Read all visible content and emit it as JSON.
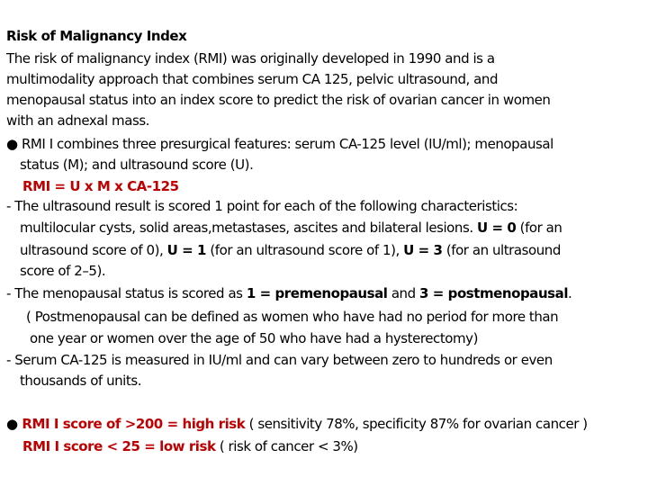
{
  "title": "Risk of Malignancy Index",
  "intro": [
    "The risk of malignancy index (RMI) was originally developed in 1990 and is a",
    "multimodality approach that combines serum CA 125, pelvic ultrasound, and",
    "menopausal status into an index score to predict the risk of ovarian cancer in women",
    "with an adnexal mass."
  ],
  "bullet_symbol": "●",
  "rmi_features": [
    " RMI I combines three presurgical features: serum CA-125 level (IU/ml); menopausal",
    "status (M); and ultrasound score (U)."
  ],
  "formula": "RMI = U x M x CA-125",
  "ultrasound": {
    "lines": [
      "- The ultrasound result is scored 1 point for each of the following characteristics:",
      "multilocular cysts, solid areas,metastases, ascites and bilateral lesions. "
    ],
    "u0": "U = 0",
    "u0_desc": " (for an",
    "line3_start": "ultrasound score of 0), ",
    "u1": "U = 1",
    "u1_desc": " (for an ultrasound score of 1), ",
    "u3": "U = 3",
    "u3_desc": " (for an ultrasound",
    "line4": "score of 2–5)."
  },
  "menopausal": {
    "prefix": "- The menopausal status is scored as ",
    "pre": "1 = premenopausal",
    "and": " and ",
    "post": "3 = postmenopausal",
    "suffix": ".",
    "definition": [
      "( Postmenopausal can be defined as women who have had no period for more than",
      "one year or women over the age of 50 who have had a hysterectomy)"
    ]
  },
  "serum": [
    "- Serum CA-125 is measured in IU/ml and can vary between zero to hundreds or even",
    "thousands of units."
  ],
  "summary": {
    "high": " RMI I score of >200 = high risk",
    "high_desc": "  ( sensitivity 78%, specificity 87% for ovarian cancer )",
    "low": "RMI I score < 25 = low risk",
    "low_desc": " ( risk of cancer < 3%)"
  },
  "colors": {
    "emphasis": "#c00000",
    "text": "#000000"
  }
}
